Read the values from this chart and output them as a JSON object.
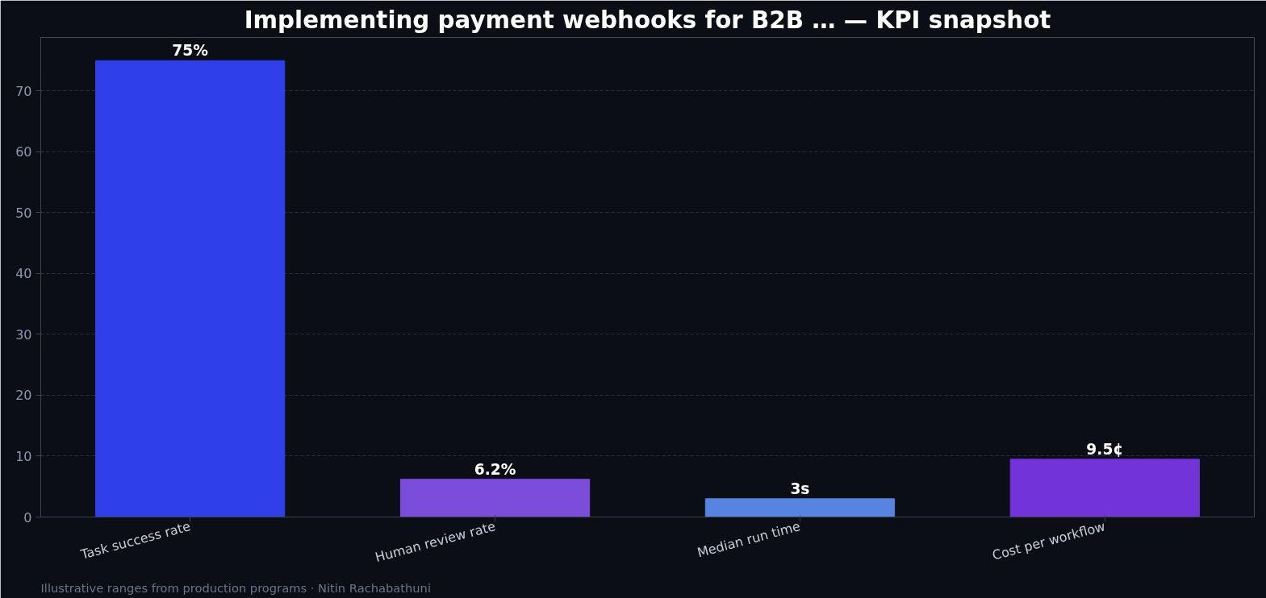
{
  "chart_data": {
    "type": "bar",
    "title": "Implementing payment webhooks for B2B … — KPI snapshot",
    "categories": [
      "Task success rate",
      "Human review rate",
      "Median run time",
      "Cost per workflow"
    ],
    "values": [
      75,
      6.2,
      3,
      9.5
    ],
    "value_labels": [
      "75%",
      "6.2%",
      "3s",
      "9.5¢"
    ],
    "colors": [
      "#2f40ea",
      "#7c4ddb",
      "#5585e0",
      "#7233d8"
    ],
    "ylim": [
      0,
      78.8
    ],
    "yticks": [
      0,
      10,
      20,
      30,
      40,
      50,
      60,
      70
    ],
    "grid": "y",
    "annotations": [
      "Illustrative ranges from production programs · Nitin Rachabathuni"
    ]
  }
}
